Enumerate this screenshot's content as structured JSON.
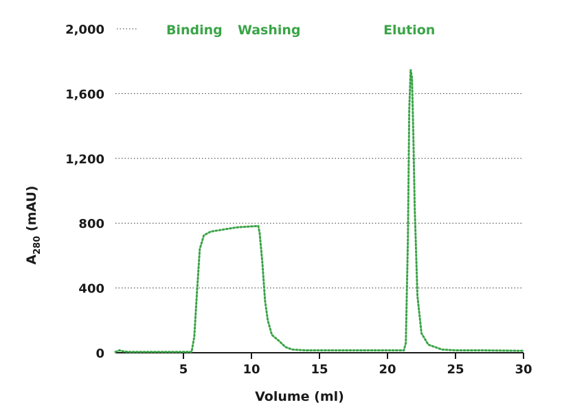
{
  "chart_data": {
    "type": "line",
    "xlabel": "Volume (ml)",
    "ylabel_main": "A",
    "ylabel_sub": "280",
    "ylabel_unit": " (mAU)",
    "xlim": [
      0,
      30
    ],
    "ylim": [
      0,
      2000
    ],
    "x_ticks": [
      5,
      10,
      15,
      20,
      25,
      30
    ],
    "x_tick_labels": [
      "5",
      "10",
      "15",
      "20",
      "25",
      "30"
    ],
    "y_ticks": [
      0,
      400,
      800,
      1200,
      1600,
      2000
    ],
    "y_tick_labels": [
      "0",
      "400",
      "800",
      "1,200",
      "1,600",
      "2,000"
    ],
    "grid": "horizontal dotted",
    "line_color": "#3aa447",
    "line_style": "dotted",
    "phase_labels": [
      {
        "text": "Binding",
        "x": 5.8
      },
      {
        "text": "Washing",
        "x": 11.3
      },
      {
        "text": "Elution",
        "x": 21.6
      }
    ],
    "series": [
      {
        "points": [
          [
            0,
            5
          ],
          [
            0.3,
            15
          ],
          [
            0.6,
            8
          ],
          [
            1,
            5
          ],
          [
            5.0,
            5
          ],
          [
            5.6,
            5
          ],
          [
            5.8,
            100
          ],
          [
            6.0,
            380
          ],
          [
            6.2,
            640
          ],
          [
            6.5,
            725
          ],
          [
            7.0,
            748
          ],
          [
            8.0,
            762
          ],
          [
            9.0,
            775
          ],
          [
            10.0,
            780
          ],
          [
            10.5,
            782
          ],
          [
            10.6,
            740
          ],
          [
            10.8,
            560
          ],
          [
            11.0,
            320
          ],
          [
            11.2,
            200
          ],
          [
            11.5,
            110
          ],
          [
            12.0,
            75
          ],
          [
            12.5,
            35
          ],
          [
            13.0,
            20
          ],
          [
            14.0,
            15
          ],
          [
            16.0,
            15
          ],
          [
            18.0,
            15
          ],
          [
            20.0,
            15
          ],
          [
            21.2,
            15
          ],
          [
            21.35,
            60
          ],
          [
            21.5,
            700
          ],
          [
            21.6,
            1500
          ],
          [
            21.7,
            1750
          ],
          [
            21.8,
            1700
          ],
          [
            21.9,
            1350
          ],
          [
            22.0,
            900
          ],
          [
            22.2,
            350
          ],
          [
            22.5,
            120
          ],
          [
            23.0,
            50
          ],
          [
            24.0,
            20
          ],
          [
            25.0,
            15
          ],
          [
            27.0,
            15
          ],
          [
            30.0,
            12
          ]
        ]
      }
    ]
  }
}
